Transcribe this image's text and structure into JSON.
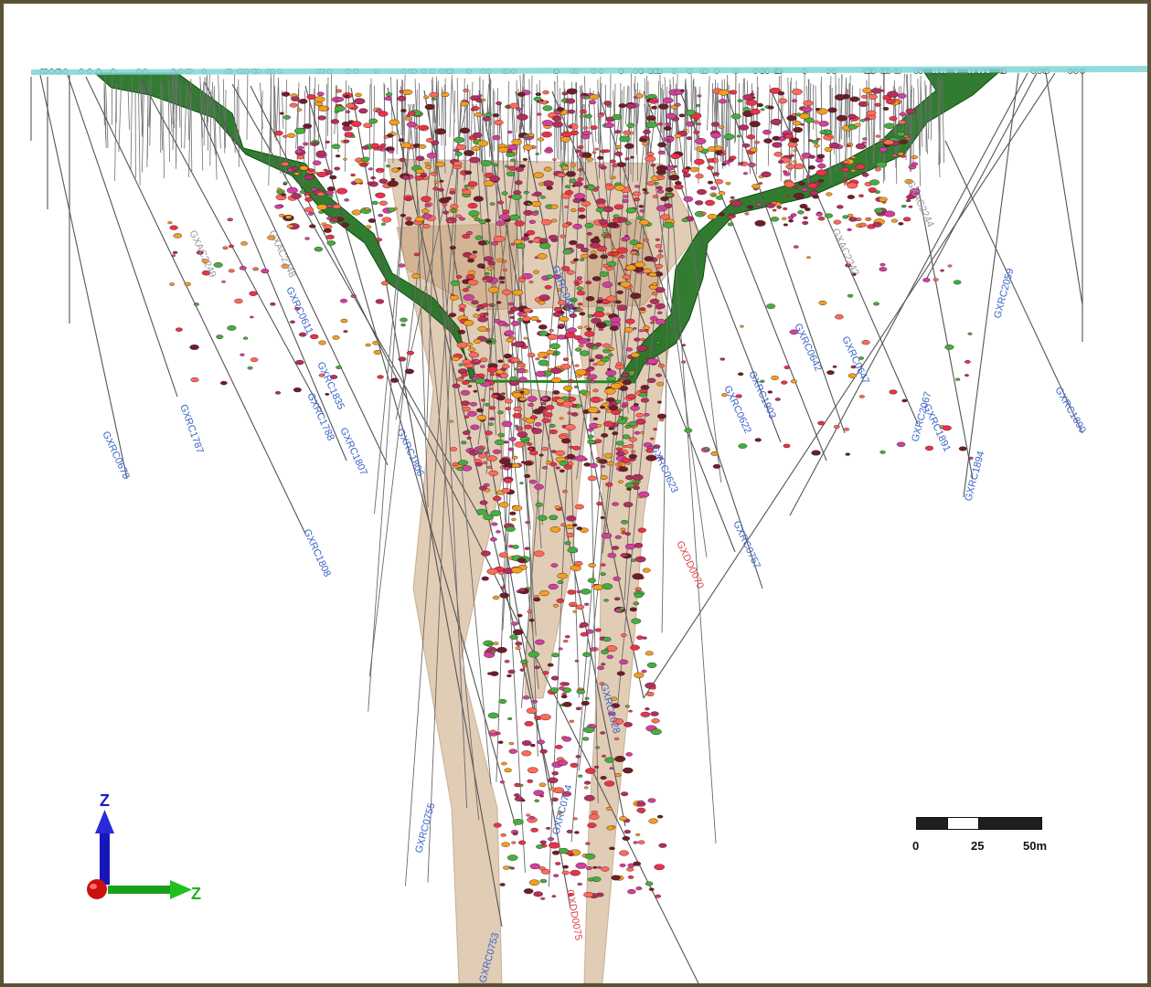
{
  "colors": {
    "frame": "#5a5236",
    "background": "#ffffff",
    "topography": "#7fd6d6",
    "pit_shell": "#1c6e1c",
    "ore_body": "#c8a27a",
    "hole_trace": "#555555",
    "label_rc": "#3a64c8",
    "label_ac": "#9a9a9a",
    "label_dd": "#e04545",
    "assay_high": "#e8334a",
    "assay_mid": "#d040a0",
    "assay_low": "#6b1f2a"
  },
  "hole_labels": [
    {
      "id": "GXRC0678",
      "type": "rc"
    },
    {
      "id": "GXRC1787",
      "type": "rc"
    },
    {
      "id": "GXAC2249",
      "type": "ac"
    },
    {
      "id": "GXAC2248",
      "type": "ac"
    },
    {
      "id": "GXRC0611",
      "type": "rc"
    },
    {
      "id": "GXRC1835",
      "type": "rc"
    },
    {
      "id": "GXRC1788",
      "type": "rc"
    },
    {
      "id": "GXRC1807",
      "type": "rc"
    },
    {
      "id": "GXRC1808",
      "type": "rc"
    },
    {
      "id": "GXRC1806",
      "type": "rc"
    },
    {
      "id": "GXRC0755",
      "type": "rc"
    },
    {
      "id": "GXRC0753",
      "type": "rc"
    },
    {
      "id": "GXDD0075",
      "type": "dd"
    },
    {
      "id": "GXRC2028",
      "type": "rc"
    },
    {
      "id": "GXRC0754",
      "type": "rc"
    },
    {
      "id": "GXDD0070",
      "type": "dd"
    },
    {
      "id": "GXRC0757",
      "type": "rc"
    },
    {
      "id": "GXRC1903",
      "type": "rc"
    },
    {
      "id": "GXRC0642",
      "type": "rc"
    },
    {
      "id": "GXRC0647",
      "type": "rc"
    },
    {
      "id": "GXRC2067",
      "type": "rc"
    },
    {
      "id": "GXRC1891",
      "type": "rc"
    },
    {
      "id": "GXRC1894",
      "type": "rc"
    },
    {
      "id": "GXRC1890",
      "type": "rc"
    },
    {
      "id": "GXRC2059",
      "type": "rc"
    },
    {
      "id": "GXAC2242",
      "type": "ac"
    },
    {
      "id": "GXAC2244",
      "type": "ac"
    },
    {
      "id": "GXRC0622",
      "type": "rc"
    },
    {
      "id": "GXRC0623",
      "type": "rc"
    },
    {
      "id": "GXRC0652",
      "type": "rc"
    }
  ],
  "scale_bar": {
    "ticks": [
      "0",
      "25",
      "50m"
    ]
  },
  "triad": {
    "up_label": "Z",
    "right_label": "Z"
  }
}
